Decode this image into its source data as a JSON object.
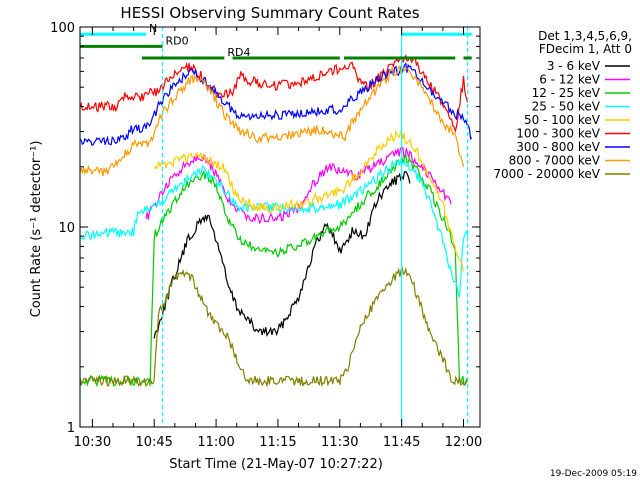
{
  "chart_data": {
    "type": "line",
    "title": "HESSI Observing Summary Count Rates",
    "xlabel": "Start Time (21-May-07 10:27:22)",
    "ylabel": "Count Rate (s⁻¹ detector⁻¹)",
    "x_scale": "time",
    "x_range": [
      "10:27",
      "12:04"
    ],
    "x_ticks": [
      "10:30",
      "10:45",
      "11:00",
      "11:15",
      "11:30",
      "11:45",
      "12:00"
    ],
    "y_scale": "log",
    "ylim": [
      1,
      100
    ],
    "y_ticks": [
      1,
      10,
      100
    ],
    "y_tick_labels": [
      "1",
      "10",
      "100"
    ],
    "grid": false,
    "legend": {
      "placement": "right",
      "header": [
        "Det 1,3,4,5,6,9,",
        "FDecim 1, Att 0"
      ]
    },
    "series": [
      {
        "name": "3 - 6 keV",
        "color": "#000000",
        "points": [
          [
            "10:45",
            2.8
          ],
          [
            "10:49",
            5.0
          ],
          [
            "10:53",
            8.5
          ],
          [
            "10:56",
            10.5
          ],
          [
            "10:58",
            11.5
          ],
          [
            "11:01",
            7.5
          ],
          [
            "11:03",
            5.0
          ],
          [
            "11:05",
            4.0
          ],
          [
            "11:10",
            3.0
          ],
          [
            "11:15",
            3.0
          ],
          [
            "11:20",
            4.5
          ],
          [
            "11:24",
            8.0
          ],
          [
            "11:27",
            10.5
          ],
          [
            "11:30",
            7.5
          ],
          [
            "11:33",
            9.5
          ],
          [
            "11:36",
            9.0
          ],
          [
            "11:39",
            13.5
          ],
          [
            "11:43",
            17.0
          ],
          [
            "11:46",
            18.0
          ],
          [
            "11:47",
            16.5
          ]
        ]
      },
      {
        "name": "6 - 12 keV",
        "color": "#ff00ff",
        "points": [
          [
            "10:43",
            11.0
          ],
          [
            "10:47",
            15.0
          ],
          [
            "10:50",
            18.0
          ],
          [
            "10:53",
            21.0
          ],
          [
            "10:56",
            23.0
          ],
          [
            "10:59",
            20.0
          ],
          [
            "11:02",
            15.0
          ],
          [
            "11:05",
            12.0
          ],
          [
            "11:10",
            11.0
          ],
          [
            "11:15",
            11.0
          ],
          [
            "11:20",
            12.5
          ],
          [
            "11:24",
            17.0
          ],
          [
            "11:27",
            20.0
          ],
          [
            "11:30",
            19.0
          ],
          [
            "11:34",
            18.0
          ],
          [
            "11:38",
            20.0
          ],
          [
            "11:42",
            22.0
          ],
          [
            "11:45",
            24.0
          ],
          [
            "11:47",
            23.0
          ],
          [
            "11:51",
            19.0
          ],
          [
            "11:54",
            16.0
          ],
          [
            "11:57",
            13.0
          ]
        ]
      },
      {
        "name": "12 - 25 keV",
        "color": "#00cc00",
        "points": [
          [
            "10:27",
            1.7
          ],
          [
            "10:44",
            1.7
          ],
          [
            "10:45",
            9.0
          ],
          [
            "10:49",
            12.5
          ],
          [
            "10:53",
            16.0
          ],
          [
            "10:57",
            18.5
          ],
          [
            "11:00",
            16.0
          ],
          [
            "11:03",
            11.0
          ],
          [
            "11:05",
            9.0
          ],
          [
            "11:10",
            7.5
          ],
          [
            "11:15",
            7.5
          ],
          [
            "11:20",
            8.0
          ],
          [
            "11:25",
            9.0
          ],
          [
            "11:30",
            10.0
          ],
          [
            "11:35",
            13.0
          ],
          [
            "11:39",
            16.0
          ],
          [
            "11:43",
            20.0
          ],
          [
            "11:46",
            22.0
          ],
          [
            "11:48",
            20.0
          ],
          [
            "11:52",
            15.0
          ],
          [
            "11:55",
            11.0
          ],
          [
            "11:58",
            8.0
          ],
          [
            "11:59",
            1.7
          ],
          [
            "12:01",
            1.7
          ]
        ]
      },
      {
        "name": "25 - 50 keV",
        "color": "#00ffff",
        "points": [
          [
            "10:27",
            9.0
          ],
          [
            "10:40",
            9.5
          ],
          [
            "10:41",
            12.0
          ],
          [
            "10:45",
            12.5
          ],
          [
            "10:49",
            15.0
          ],
          [
            "10:53",
            17.5
          ],
          [
            "10:57",
            19.5
          ],
          [
            "11:00",
            17.0
          ],
          [
            "11:03",
            14.5
          ],
          [
            "11:05",
            12.5
          ],
          [
            "11:10",
            12.5
          ],
          [
            "11:15",
            12.5
          ],
          [
            "11:20",
            12.5
          ],
          [
            "11:25",
            12.5
          ],
          [
            "11:30",
            13.0
          ],
          [
            "11:35",
            15.0
          ],
          [
            "11:39",
            17.5
          ],
          [
            "11:43",
            20.5
          ],
          [
            "11:46",
            21.0
          ],
          [
            "11:49",
            18.0
          ],
          [
            "11:52",
            13.0
          ],
          [
            "11:55",
            8.5
          ],
          [
            "11:57",
            6.0
          ],
          [
            "11:59",
            4.5
          ],
          [
            "12:00",
            9.0
          ],
          [
            "12:01",
            9.0
          ]
        ]
      },
      {
        "name": "50 - 100 keV",
        "color": "#ffcc00",
        "points": [
          [
            "10:45",
            20.0
          ],
          [
            "10:49",
            21.0
          ],
          [
            "10:53",
            22.0
          ],
          [
            "10:56",
            23.0
          ],
          [
            "10:59",
            21.0
          ],
          [
            "11:02",
            20.0
          ],
          [
            "11:05",
            14.0
          ],
          [
            "11:10",
            12.5
          ],
          [
            "11:15",
            12.5
          ],
          [
            "11:20",
            13.0
          ],
          [
            "11:25",
            14.0
          ],
          [
            "11:30",
            15.0
          ],
          [
            "11:35",
            19.0
          ],
          [
            "11:39",
            24.0
          ],
          [
            "11:43",
            28.0
          ],
          [
            "11:45",
            29.0
          ],
          [
            "11:48",
            25.0
          ],
          [
            "11:52",
            18.0
          ],
          [
            "11:55",
            13.0
          ],
          [
            "11:57",
            9.0
          ],
          [
            "11:59",
            7.0
          ],
          [
            "12:00",
            6.0
          ]
        ]
      },
      {
        "name": "100 - 300 keV",
        "color": "#ff0000",
        "points": [
          [
            "10:27",
            40.0
          ],
          [
            "10:36",
            40.0
          ],
          [
            "10:37",
            45.0
          ],
          [
            "10:39",
            44.0
          ],
          [
            "10:42",
            45.0
          ],
          [
            "10:46",
            48.0
          ],
          [
            "10:48",
            53.0
          ],
          [
            "10:50",
            58.0
          ],
          [
            "10:52",
            62.0
          ],
          [
            "10:54",
            64.0
          ],
          [
            "10:56",
            58.0
          ],
          [
            "10:58",
            52.0
          ],
          [
            "11:01",
            45.0
          ],
          [
            "11:04",
            48.0
          ],
          [
            "11:06",
            57.0
          ],
          [
            "11:10",
            52.0
          ],
          [
            "11:15",
            51.0
          ],
          [
            "11:20",
            53.0
          ],
          [
            "11:25",
            57.0
          ],
          [
            "11:30",
            62.0
          ],
          [
            "11:33",
            66.0
          ],
          [
            "11:35",
            52.0
          ],
          [
            "11:37",
            50.0
          ],
          [
            "11:40",
            57.0
          ],
          [
            "11:43",
            64.0
          ],
          [
            "11:46",
            70.0
          ],
          [
            "11:48",
            68.0
          ],
          [
            "11:50",
            59.0
          ],
          [
            "11:53",
            48.0
          ],
          [
            "11:56",
            38.0
          ],
          [
            "11:58",
            30.0
          ],
          [
            "12:00",
            55.0
          ],
          [
            "12:01",
            42.0
          ]
        ]
      },
      {
        "name": "300 - 800 keV",
        "color": "#0000ff",
        "points": [
          [
            "10:27",
            27.0
          ],
          [
            "10:36",
            27.0
          ],
          [
            "10:40",
            31.0
          ],
          [
            "10:43",
            31.0
          ],
          [
            "10:46",
            40.0
          ],
          [
            "10:49",
            48.0
          ],
          [
            "10:52",
            56.0
          ],
          [
            "10:55",
            60.0
          ],
          [
            "10:58",
            51.0
          ],
          [
            "11:02",
            42.0
          ],
          [
            "11:05",
            37.0
          ],
          [
            "11:10",
            36.0
          ],
          [
            "11:15",
            36.0
          ],
          [
            "11:20",
            36.5
          ],
          [
            "11:25",
            38.0
          ],
          [
            "11:30",
            38.5
          ],
          [
            "11:35",
            47.0
          ],
          [
            "11:40",
            56.0
          ],
          [
            "11:43",
            60.0
          ],
          [
            "11:46",
            62.0
          ],
          [
            "11:48",
            59.0
          ],
          [
            "11:52",
            48.0
          ],
          [
            "11:55",
            42.0
          ],
          [
            "11:58",
            37.0
          ],
          [
            "12:00",
            35.0
          ],
          [
            "12:02",
            28.0
          ]
        ]
      },
      {
        "name": "800 - 7000 keV",
        "color": "#ff9900",
        "points": [
          [
            "10:27",
            19.0
          ],
          [
            "10:34",
            19.0
          ],
          [
            "10:36",
            21.0
          ],
          [
            "10:40",
            26.0
          ],
          [
            "10:44",
            26.0
          ],
          [
            "10:47",
            37.0
          ],
          [
            "10:50",
            45.0
          ],
          [
            "10:53",
            53.0
          ],
          [
            "10:56",
            56.0
          ],
          [
            "10:59",
            46.0
          ],
          [
            "11:02",
            37.0
          ],
          [
            "11:05",
            31.0
          ],
          [
            "11:10",
            28.0
          ],
          [
            "11:15",
            28.5
          ],
          [
            "11:20",
            29.0
          ],
          [
            "11:25",
            31.0
          ],
          [
            "11:28",
            30.0
          ],
          [
            "11:31",
            28.0
          ],
          [
            "11:35",
            39.0
          ],
          [
            "11:40",
            52.0
          ],
          [
            "11:43",
            60.0
          ],
          [
            "11:46",
            61.0
          ],
          [
            "11:49",
            52.0
          ],
          [
            "11:52",
            43.0
          ],
          [
            "11:55",
            33.0
          ],
          [
            "11:58",
            29.0
          ],
          [
            "12:00",
            20.0
          ]
        ]
      },
      {
        "name": "7000 - 20000 keV",
        "color": "#808000",
        "points": [
          [
            "10:27",
            1.7
          ],
          [
            "10:45",
            1.7
          ],
          [
            "10:46",
            3.6
          ],
          [
            "10:48",
            4.5
          ],
          [
            "10:50",
            5.5
          ],
          [
            "10:52",
            6.0
          ],
          [
            "10:54",
            5.6
          ],
          [
            "10:56",
            4.5
          ],
          [
            "10:58",
            3.8
          ],
          [
            "11:00",
            3.3
          ],
          [
            "11:03",
            2.8
          ],
          [
            "11:06",
            1.9
          ],
          [
            "11:08",
            1.7
          ],
          [
            "11:30",
            1.7
          ],
          [
            "11:32",
            2.0
          ],
          [
            "11:35",
            3.3
          ],
          [
            "11:38",
            4.0
          ],
          [
            "11:41",
            5.0
          ],
          [
            "11:44",
            5.8
          ],
          [
            "11:46",
            6.0
          ],
          [
            "11:48",
            5.0
          ],
          [
            "11:50",
            3.8
          ],
          [
            "11:52",
            2.9
          ],
          [
            "11:55",
            2.2
          ],
          [
            "11:57",
            1.7
          ],
          [
            "12:01",
            1.7
          ]
        ]
      }
    ],
    "annotations": {
      "vertical_markers": [
        {
          "time": "10:27",
          "color": "#00ffff",
          "style": "solid"
        },
        {
          "time": "10:47",
          "color": "#00ffff",
          "style": "dashed"
        },
        {
          "time": "11:45",
          "color": "#00ffff",
          "style": "solid"
        },
        {
          "time": "12:01",
          "color": "#00ffff",
          "style": "dashed"
        }
      ],
      "state_bars": [
        {
          "label": "N",
          "color": "#00ffff",
          "level": 92,
          "segments": [
            [
              "10:27",
              "10:43"
            ],
            [
              "11:45",
              "12:02"
            ]
          ]
        },
        {
          "label": "RD0",
          "color": "#008000",
          "level": 80,
          "segments": [
            [
              "10:27",
              "10:47"
            ]
          ]
        },
        {
          "label": "RD4",
          "color": "#008000",
          "level": 70,
          "segments": [
            [
              "10:42",
              "11:02"
            ],
            [
              "11:04",
              "11:30"
            ],
            [
              "11:31",
              "11:58"
            ],
            [
              "12:00",
              "12:02"
            ]
          ]
        }
      ]
    },
    "timestamp": "19-Dec-2009 05:19"
  }
}
